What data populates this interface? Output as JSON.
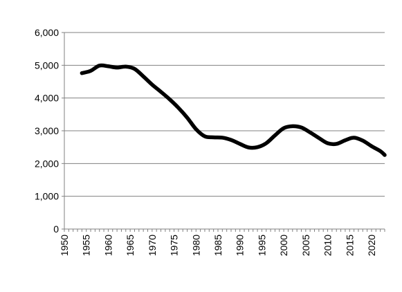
{
  "chart_data": {
    "type": "line",
    "title": "",
    "xlabel": "",
    "ylabel": "",
    "xlim": [
      1950,
      2023
    ],
    "ylim": [
      0,
      6000
    ],
    "grid": true,
    "legend": "none",
    "x_ticks": [
      1950,
      1955,
      1960,
      1965,
      1970,
      1975,
      1980,
      1985,
      1990,
      1995,
      2000,
      2005,
      2010,
      2015,
      2020
    ],
    "x_tick_labels": [
      "1950",
      "1955",
      "1960",
      "1965",
      "1970",
      "1975",
      "1980",
      "1985",
      "1990",
      "1995",
      "2000",
      "2005",
      "2010",
      "2015",
      "2020"
    ],
    "y_ticks": [
      0,
      1000,
      2000,
      3000,
      4000,
      5000,
      6000
    ],
    "y_tick_labels": [
      "0",
      "1,000",
      "2,000",
      "3,000",
      "4,000",
      "5,000",
      "6,000"
    ],
    "line_color": "#000000",
    "grid_color": "#808080",
    "series": [
      {
        "x": [
          1954,
          1956,
          1958,
          1960,
          1962,
          1964,
          1966,
          1968,
          1970,
          1972,
          1974,
          1976,
          1978,
          1980,
          1982,
          1984,
          1986,
          1988,
          1990,
          1992,
          1994,
          1996,
          1998,
          2000,
          2002,
          2004,
          2006,
          2008,
          2010,
          2012,
          2014,
          2016,
          2018,
          2020,
          2022,
          2023
        ],
        "values": [
          4760,
          4830,
          4990,
          4970,
          4930,
          4960,
          4890,
          4660,
          4410,
          4190,
          3960,
          3700,
          3400,
          3050,
          2830,
          2800,
          2790,
          2720,
          2600,
          2490,
          2500,
          2620,
          2860,
          3080,
          3140,
          3100,
          2950,
          2780,
          2620,
          2600,
          2710,
          2790,
          2700,
          2530,
          2380,
          2260
        ]
      }
    ]
  }
}
